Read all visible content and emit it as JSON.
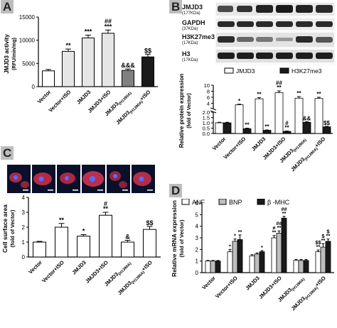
{
  "panels": {
    "A": "A",
    "B": "B",
    "C": "C",
    "D": "D"
  },
  "colors": {
    "white_bar": "#ffffff",
    "light_bar": "#e6e6e6",
    "mid_bar": "#bdbdbd",
    "dark_bar": "#808080",
    "black_bar": "#1a1a1a",
    "axis": "#000000"
  },
  "blot": {
    "proteins": [
      {
        "name": "JMJD3",
        "size": "(177KDa)"
      },
      {
        "name": "GAPDH",
        "size": "(37KDa)"
      },
      {
        "name": "H3K27me3",
        "size": "(17KDa)"
      },
      {
        "name": "H3",
        "size": "(17KDa)"
      }
    ]
  },
  "chart_data": [
    {
      "panel": "A",
      "type": "bar",
      "categories": [
        "Vector",
        "Vector+ISO",
        "JMJD3",
        "JMJD3+ISO",
        "JMJD3(H1390A)",
        "JMJD3(H1390A)+ISO"
      ],
      "values": [
        3400,
        7600,
        10500,
        11500,
        3500,
        6400
      ],
      "errors": [
        300,
        500,
        600,
        700,
        300,
        600
      ],
      "annotations": [
        [
          "",
          ""
        ],
        [
          "**",
          ""
        ],
        [
          "***",
          ""
        ],
        [
          "##",
          "***"
        ],
        [
          "&&&",
          ""
        ],
        [
          "$$",
          ""
        ]
      ],
      "ylabel": "JMJD3 activity",
      "ylabel2": "(RFU/min/mg)",
      "ylim": [
        0,
        15000
      ],
      "yticks": [
        "0",
        "5000",
        "10000",
        "15000"
      ]
    },
    {
      "panel": "B",
      "type": "bar",
      "categories": [
        "Vector",
        "Vector+ISO",
        "JMJD3",
        "JMJD3+ISO",
        "JMJD3(H1390A)",
        "JMJD3(H1390A)+ISO"
      ],
      "series": [
        {
          "name": "JMJD3",
          "values": [
            1.0,
            3.5,
            5.5,
            7.5,
            5.7,
            5.6
          ],
          "errors": [
            0.05,
            0.2,
            0.4,
            0.6,
            0.5,
            0.4
          ]
        },
        {
          "name": "H3K27me3",
          "values": [
            1.0,
            0.45,
            0.3,
            0.2,
            1.05,
            0.62
          ],
          "errors": [
            0.05,
            0.05,
            0.03,
            0.03,
            0.05,
            0.05
          ]
        }
      ],
      "annotations_s1": [
        [
          "",
          ""
        ],
        [
          "*",
          ""
        ],
        [
          "**",
          ""
        ],
        [
          "##",
          "**"
        ],
        [
          "**",
          ""
        ],
        [
          "**",
          ""
        ]
      ],
      "annotations_s2": [
        [
          "",
          ""
        ],
        [
          "**",
          ""
        ],
        [
          "**",
          ""
        ],
        [
          "#",
          "**"
        ],
        [
          "&&",
          ""
        ],
        [
          "$$",
          ""
        ]
      ],
      "ylabel": "Relative protein expression",
      "ylabel2": "(fold of Vector)",
      "ylim": [
        0,
        10
      ],
      "yticks": [
        "0.0",
        "0.5",
        "1.0",
        "1.5",
        "2.0",
        "4",
        "6",
        "8",
        "10"
      ],
      "axis_break": true
    },
    {
      "panel": "C",
      "type": "bar",
      "categories": [
        "Vector",
        "Vector+ISO",
        "JMJD3",
        "JMJD3+ISO",
        "JMJD3(H1390A)",
        "JMJD3(H1390A)+ISO"
      ],
      "values": [
        1.0,
        2.0,
        1.4,
        2.8,
        1.0,
        1.85
      ],
      "errors": [
        0.05,
        0.25,
        0.1,
        0.2,
        0.12,
        0.2
      ],
      "annotations": [
        [
          "",
          ""
        ],
        [
          "**",
          ""
        ],
        [
          "*",
          ""
        ],
        [
          "#",
          "**"
        ],
        [
          "&",
          ""
        ],
        [
          "$$",
          ""
        ]
      ],
      "ylabel": "Cell surface area",
      "ylabel2": "(fold of  Vector)",
      "ylim": [
        0,
        4
      ],
      "yticks": [
        "0",
        "1",
        "2",
        "3",
        "4"
      ]
    },
    {
      "panel": "D",
      "type": "bar",
      "categories": [
        "Vector",
        "Vector+ISO",
        "JMJD3",
        "JMJD3+ISO",
        "JMJD3(H1390A)",
        "JMJD3(H1390A)+ISO"
      ],
      "series": [
        {
          "name": "ANF",
          "values": [
            1.0,
            1.8,
            1.45,
            3.0,
            1.05,
            1.8
          ],
          "errors": [
            0.05,
            0.2,
            0.1,
            0.2,
            0.08,
            0.15
          ]
        },
        {
          "name": "BNP",
          "values": [
            1.0,
            2.7,
            1.6,
            3.4,
            1.05,
            2.2
          ],
          "errors": [
            0.05,
            0.2,
            0.1,
            0.2,
            0.08,
            0.3
          ]
        },
        {
          "name": "β -MHC",
          "values": [
            1.0,
            2.85,
            1.8,
            4.7,
            1.05,
            2.7
          ],
          "errors": [
            0.05,
            0.4,
            0.1,
            0.15,
            0.08,
            0.2
          ]
        }
      ],
      "annotations": [
        [
          [
            "",
            ""
          ],
          [
            "",
            ""
          ],
          [
            "",
            ""
          ]
        ],
        [
          [
            "*",
            ""
          ],
          [
            "*",
            ""
          ],
          [
            "**",
            ""
          ]
        ],
        [
          [
            "",
            ""
          ],
          [
            "",
            ""
          ],
          [
            "*",
            ""
          ]
        ],
        [
          [
            "#",
            "**"
          ],
          [
            "##",
            "**"
          ],
          [
            "##",
            "**"
          ]
        ],
        [
          [
            "",
            ""
          ],
          [
            "",
            ""
          ],
          [
            "",
            ""
          ]
        ],
        [
          [
            "$$",
            "**"
          ],
          [
            "$",
            "**"
          ],
          [
            "$",
            "**"
          ]
        ]
      ],
      "ylabel": "Relative mRNA expression",
      "ylabel2": "(fold of Vector)",
      "ylim": [
        0,
        6
      ],
      "yticks": [
        "0",
        "1",
        "2",
        "3",
        "4",
        "5",
        "6"
      ]
    }
  ]
}
